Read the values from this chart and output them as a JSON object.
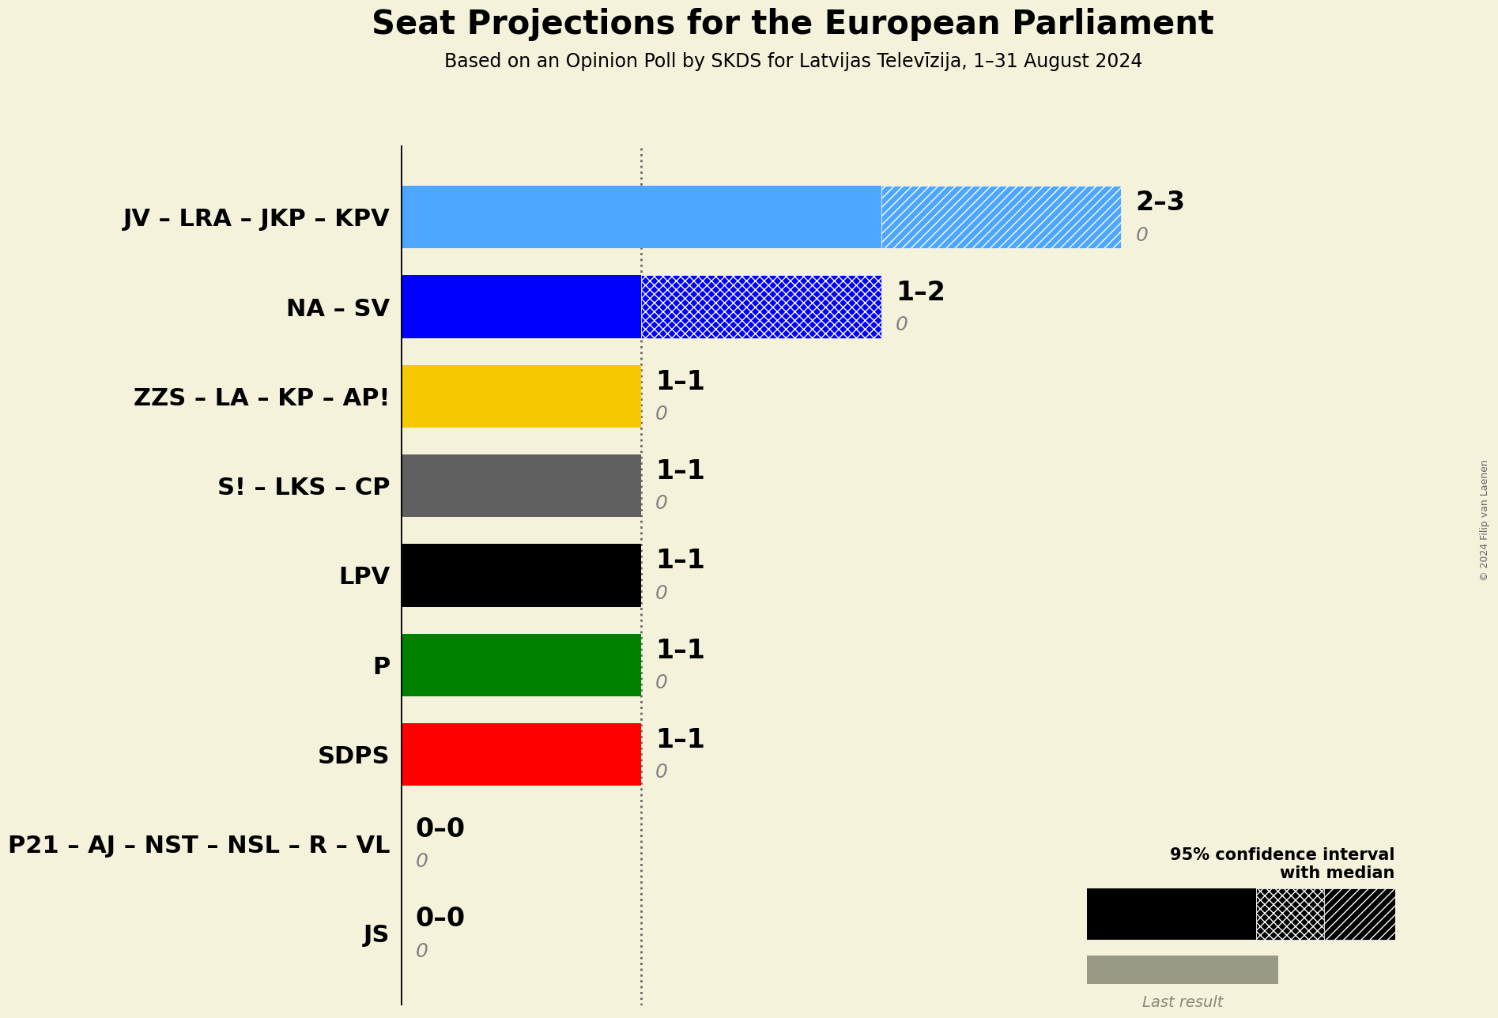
{
  "title": "Seat Projections for the European Parliament",
  "subtitle": "Based on an Opinion Poll by SKDS for Latvijas Televīzija, 1–31 August 2024",
  "copyright": "© 2024 Filip van Laenen",
  "background_color": "#f5f2dc",
  "parties": [
    {
      "name": "JV – LRA – JKP – KPV",
      "median": 2,
      "low": 2,
      "high": 3,
      "last": 0,
      "color": "#4da6ff",
      "hatch_style": "///"
    },
    {
      "name": "NA – SV",
      "median": 1,
      "low": 1,
      "high": 2,
      "last": 0,
      "color": "#0000ff",
      "hatch_style": "xxx"
    },
    {
      "name": "ZZS – LA – KP – AP!",
      "median": 1,
      "low": 1,
      "high": 1,
      "last": 0,
      "color": "#f5c800",
      "hatch_style": null
    },
    {
      "name": "S! – LKS – CP",
      "median": 1,
      "low": 1,
      "high": 1,
      "last": 0,
      "color": "#606060",
      "hatch_style": null
    },
    {
      "name": "LPV",
      "median": 1,
      "low": 1,
      "high": 1,
      "last": 0,
      "color": "#000000",
      "hatch_style": null
    },
    {
      "name": "P",
      "median": 1,
      "low": 1,
      "high": 1,
      "last": 0,
      "color": "#008000",
      "hatch_style": null
    },
    {
      "name": "SDPS",
      "median": 1,
      "low": 1,
      "high": 1,
      "last": 0,
      "color": "#ff0000",
      "hatch_style": null
    },
    {
      "name": "P21 – AJ – NST – NSL – R – VL",
      "median": 0,
      "low": 0,
      "high": 0,
      "last": 0,
      "color": "#888888",
      "hatch_style": null
    },
    {
      "name": "JS",
      "median": 0,
      "low": 0,
      "high": 0,
      "last": 0,
      "color": "#888888",
      "hatch_style": null
    }
  ],
  "xlim": [
    0,
    3.5
  ],
  "bar_height": 0.7,
  "dotted_line_x": 1.0,
  "label_fontsize": 22,
  "title_fontsize": 30,
  "subtitle_fontsize": 17,
  "annotation_fontsize": 24,
  "annotation_last_fontsize": 18
}
